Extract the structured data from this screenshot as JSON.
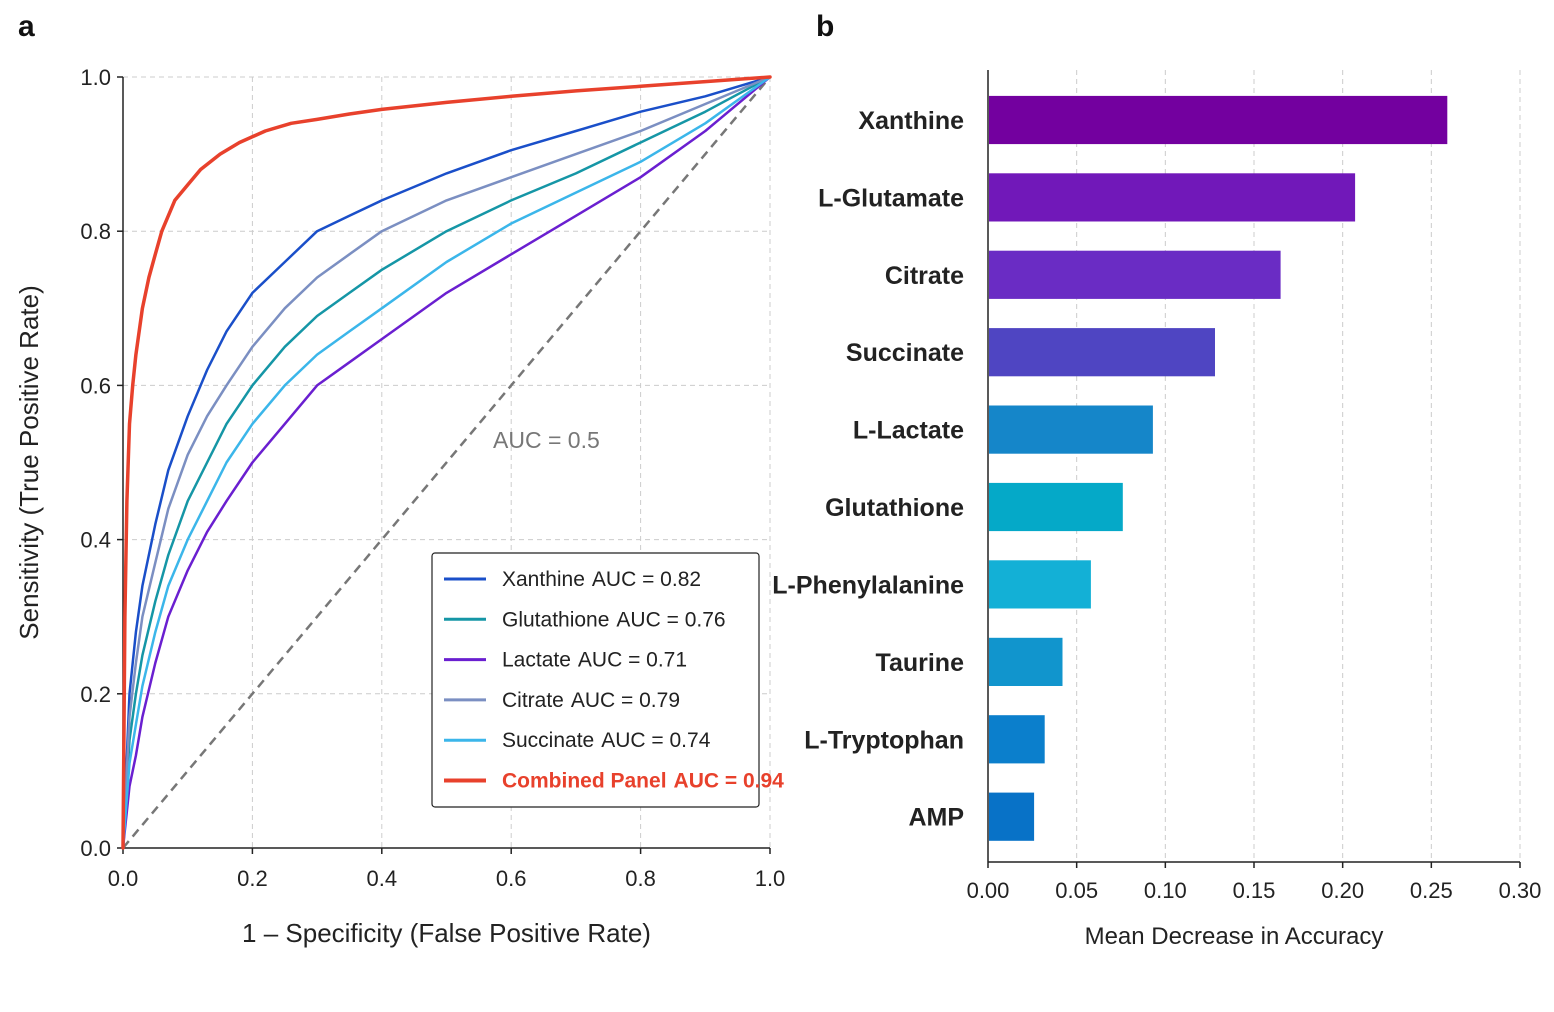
{
  "panels": {
    "a_label": "a",
    "b_label": "b"
  },
  "chart_data": [
    {
      "type": "line",
      "panel": "a",
      "title": "",
      "xlabel": "1 – Specificity (False Positive Rate)",
      "ylabel": "Sensitivity (True Positive Rate)",
      "xlim": [
        0,
        1
      ],
      "ylim": [
        0,
        1
      ],
      "x_ticks": [
        "0.0",
        "0.2",
        "0.4",
        "0.6",
        "0.8",
        "1.0"
      ],
      "y_ticks": [
        "0.0",
        "0.2",
        "0.4",
        "0.6",
        "0.8",
        "1.0"
      ],
      "grid": true,
      "legend_position": "bottom-right",
      "annotation": "AUC = 0.5",
      "series": [
        {
          "name": "Xanthine",
          "auc_label": "AUC = 0.82",
          "color": "#1a4fc9",
          "x": [
            0,
            0.01,
            0.02,
            0.03,
            0.05,
            0.07,
            0.1,
            0.13,
            0.16,
            0.2,
            0.25,
            0.3,
            0.35,
            0.4,
            0.5,
            0.6,
            0.7,
            0.8,
            0.9,
            1.0
          ],
          "y": [
            0,
            0.2,
            0.28,
            0.34,
            0.42,
            0.49,
            0.56,
            0.62,
            0.67,
            0.72,
            0.76,
            0.8,
            0.82,
            0.84,
            0.875,
            0.905,
            0.93,
            0.955,
            0.975,
            1.0
          ]
        },
        {
          "name": "Glutathione",
          "auc_label": "AUC = 0.76",
          "color": "#1596a6",
          "x": [
            0,
            0.01,
            0.02,
            0.03,
            0.05,
            0.07,
            0.1,
            0.13,
            0.16,
            0.2,
            0.25,
            0.3,
            0.35,
            0.4,
            0.5,
            0.6,
            0.7,
            0.8,
            0.9,
            1.0
          ],
          "y": [
            0,
            0.14,
            0.2,
            0.25,
            0.32,
            0.38,
            0.45,
            0.5,
            0.55,
            0.6,
            0.65,
            0.69,
            0.72,
            0.75,
            0.8,
            0.84,
            0.875,
            0.915,
            0.955,
            1.0
          ]
        },
        {
          "name": "Lactate",
          "auc_label": "AUC = 0.71",
          "color": "#6a1fd0",
          "x": [
            0,
            0.01,
            0.02,
            0.03,
            0.05,
            0.07,
            0.1,
            0.13,
            0.16,
            0.2,
            0.25,
            0.3,
            0.35,
            0.4,
            0.5,
            0.6,
            0.7,
            0.8,
            0.9,
            1.0
          ],
          "y": [
            0,
            0.08,
            0.12,
            0.17,
            0.24,
            0.3,
            0.36,
            0.41,
            0.45,
            0.5,
            0.55,
            0.6,
            0.63,
            0.66,
            0.72,
            0.77,
            0.82,
            0.87,
            0.93,
            1.0
          ]
        },
        {
          "name": "Citrate",
          "auc_label": "AUC = 0.79",
          "color": "#7b8fc2",
          "x": [
            0,
            0.01,
            0.02,
            0.03,
            0.05,
            0.07,
            0.1,
            0.13,
            0.16,
            0.2,
            0.25,
            0.3,
            0.35,
            0.4,
            0.5,
            0.6,
            0.7,
            0.8,
            0.9,
            1.0
          ],
          "y": [
            0,
            0.17,
            0.24,
            0.3,
            0.37,
            0.44,
            0.51,
            0.56,
            0.6,
            0.65,
            0.7,
            0.74,
            0.77,
            0.8,
            0.84,
            0.87,
            0.9,
            0.93,
            0.965,
            1.0
          ]
        },
        {
          "name": "Succinate",
          "auc_label": "AUC = 0.74",
          "color": "#3bb6ea",
          "x": [
            0,
            0.01,
            0.02,
            0.03,
            0.05,
            0.07,
            0.1,
            0.13,
            0.16,
            0.2,
            0.25,
            0.3,
            0.35,
            0.4,
            0.5,
            0.6,
            0.7,
            0.8,
            0.9,
            1.0
          ],
          "y": [
            0,
            0.11,
            0.16,
            0.21,
            0.28,
            0.34,
            0.4,
            0.45,
            0.5,
            0.55,
            0.6,
            0.64,
            0.67,
            0.7,
            0.76,
            0.81,
            0.85,
            0.89,
            0.94,
            1.0
          ]
        },
        {
          "name": "Combined Panel",
          "auc_label": "AUC = 0.94",
          "color": "#e8412c",
          "highlight": true,
          "x": [
            0,
            0.003,
            0.006,
            0.01,
            0.015,
            0.02,
            0.03,
            0.04,
            0.05,
            0.06,
            0.08,
            0.1,
            0.12,
            0.15,
            0.18,
            0.22,
            0.26,
            0.3,
            0.35,
            0.4,
            0.5,
            0.6,
            0.7,
            0.8,
            0.9,
            1.0
          ],
          "y": [
            0,
            0.3,
            0.45,
            0.55,
            0.6,
            0.64,
            0.7,
            0.74,
            0.77,
            0.8,
            0.84,
            0.86,
            0.88,
            0.9,
            0.915,
            0.93,
            0.94,
            0.945,
            0.952,
            0.958,
            0.967,
            0.975,
            0.982,
            0.988,
            0.994,
            1.0
          ]
        }
      ],
      "reference_line": {
        "x": [
          0,
          1
        ],
        "y": [
          0,
          1
        ],
        "color": "#777777"
      }
    },
    {
      "type": "bar",
      "panel": "b",
      "orientation": "horizontal",
      "title": "",
      "xlabel": "Mean Decrease in Accuracy",
      "ylabel": "",
      "xlim": [
        0,
        0.3
      ],
      "x_ticks": [
        "0.00",
        "0.05",
        "0.10",
        "0.15",
        "0.20",
        "0.25",
        "0.30"
      ],
      "grid": true,
      "categories": [
        "Xanthine",
        "L-Glutamate",
        "Citrate",
        "Succinate",
        "L-Lactate",
        "Glutathione",
        "L-Phenylalanine",
        "Taurine",
        "L-Tryptophan",
        "AMP"
      ],
      "values": [
        0.259,
        0.207,
        0.165,
        0.128,
        0.093,
        0.076,
        0.058,
        0.042,
        0.032,
        0.026
      ],
      "colors": [
        "#73009f",
        "#7118b9",
        "#6a2cc4",
        "#4f45c2",
        "#1586c9",
        "#05a9c8",
        "#13b0d6",
        "#1195cd",
        "#0b7fcc",
        "#0872c7"
      ]
    }
  ]
}
